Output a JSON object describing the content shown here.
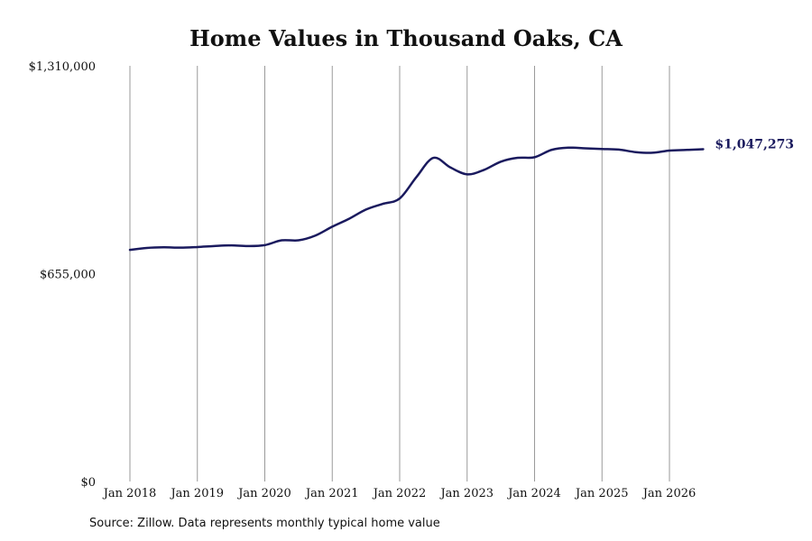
{
  "chart_data": {
    "type": "line",
    "title": "Home Values in Thousand Oaks, CA",
    "source_note": "Source: Zillow. Data represents monthly typical home value",
    "xlabel": "",
    "ylabel": "",
    "ylim": [
      0,
      1310000
    ],
    "y_ticks": [
      {
        "value": 0,
        "label": "$0"
      },
      {
        "value": 655000,
        "label": "$655,000"
      },
      {
        "value": 1310000,
        "label": "$1,310,000"
      }
    ],
    "x_ticks": [
      {
        "value": "2018-01",
        "label": "Jan 2018"
      },
      {
        "value": "2019-01",
        "label": "Jan 2019"
      },
      {
        "value": "2020-01",
        "label": "Jan 2020"
      },
      {
        "value": "2021-01",
        "label": "Jan 2021"
      },
      {
        "value": "2022-01",
        "label": "Jan 2022"
      },
      {
        "value": "2023-01",
        "label": "Jan 2023"
      },
      {
        "value": "2024-01",
        "label": "Jan 2024"
      },
      {
        "value": "2025-01",
        "label": "Jan 2025"
      },
      {
        "value": "2026-01",
        "label": "Jan 2026"
      }
    ],
    "grid": {
      "vertical": true,
      "horizontal": false
    },
    "line_color": "#1a1a5e",
    "end_label": "$1,047,273",
    "series": [
      {
        "points": [
          [
            "2018-01",
            730000
          ],
          [
            "2018-04",
            736000
          ],
          [
            "2018-07",
            738000
          ],
          [
            "2018-10",
            737000
          ],
          [
            "2019-01",
            739000
          ],
          [
            "2019-04",
            742000
          ],
          [
            "2019-07",
            744000
          ],
          [
            "2019-10",
            742000
          ],
          [
            "2020-01",
            745000
          ],
          [
            "2020-04",
            760000
          ],
          [
            "2020-07",
            760000
          ],
          [
            "2020-10",
            775000
          ],
          [
            "2021-01",
            803000
          ],
          [
            "2021-04",
            828000
          ],
          [
            "2021-07",
            857000
          ],
          [
            "2021-10",
            875000
          ],
          [
            "2022-01",
            892000
          ],
          [
            "2022-04",
            960000
          ],
          [
            "2022-07",
            1020000
          ],
          [
            "2022-10",
            990000
          ],
          [
            "2023-01",
            968000
          ],
          [
            "2023-04",
            982000
          ],
          [
            "2023-07",
            1008000
          ],
          [
            "2023-10",
            1020000
          ],
          [
            "2024-01",
            1022000
          ],
          [
            "2024-04",
            1045000
          ],
          [
            "2024-07",
            1052000
          ],
          [
            "2024-10",
            1050000
          ],
          [
            "2025-01",
            1048000
          ],
          [
            "2025-04",
            1046000
          ],
          [
            "2025-07",
            1038000
          ],
          [
            "2025-10",
            1036000
          ],
          [
            "2026-01",
            1043000
          ],
          [
            "2026-04",
            1045000
          ],
          [
            "2026-07",
            1047273
          ]
        ]
      }
    ]
  }
}
